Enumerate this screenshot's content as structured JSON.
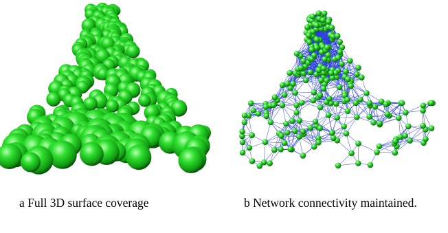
{
  "figure": {
    "subfigures": [
      {
        "label": "a",
        "caption": "Full 3D surface coverage",
        "image": "green-sphere-covered-peak-surface",
        "colors": {
          "sphere": "#1fcf1f",
          "sphere_dark": "#0a6a0a",
          "sphere_light": "#aaffaa"
        }
      },
      {
        "label": "b",
        "caption": "Network connectivity maintained.",
        "caption_lines": [
          "Network   connectivity   main-",
          "tained."
        ],
        "image": "sensor-node-network-graph-on-peak",
        "colors": {
          "node": "#22c022",
          "edge": "#2233dd"
        }
      }
    ]
  }
}
